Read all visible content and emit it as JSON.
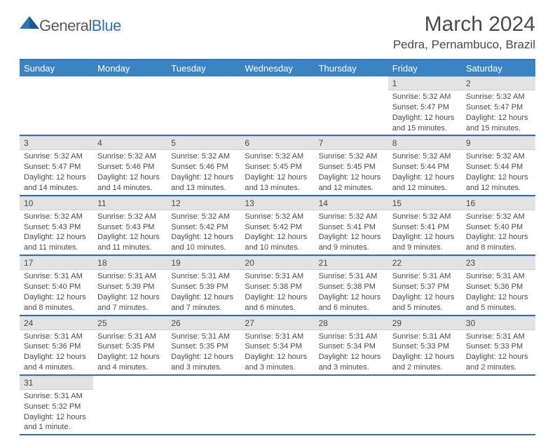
{
  "logo": {
    "part1": "General",
    "part2": "Blue"
  },
  "title": "March 2024",
  "location": "Pedra, Pernambuco, Brazil",
  "colors": {
    "header_bg": "#3a84c4",
    "accent": "#2d72b5",
    "daynum_bg": "#e3e3e3",
    "text": "#4a4a4a"
  },
  "weekdays": [
    "Sunday",
    "Monday",
    "Tuesday",
    "Wednesday",
    "Thursday",
    "Friday",
    "Saturday"
  ],
  "weeks": [
    [
      null,
      null,
      null,
      null,
      null,
      {
        "n": "1",
        "sr": "Sunrise: 5:32 AM",
        "ss": "Sunset: 5:47 PM",
        "dl1": "Daylight: 12 hours",
        "dl2": "and 15 minutes."
      },
      {
        "n": "2",
        "sr": "Sunrise: 5:32 AM",
        "ss": "Sunset: 5:47 PM",
        "dl1": "Daylight: 12 hours",
        "dl2": "and 15 minutes."
      }
    ],
    [
      {
        "n": "3",
        "sr": "Sunrise: 5:32 AM",
        "ss": "Sunset: 5:47 PM",
        "dl1": "Daylight: 12 hours",
        "dl2": "and 14 minutes."
      },
      {
        "n": "4",
        "sr": "Sunrise: 5:32 AM",
        "ss": "Sunset: 5:46 PM",
        "dl1": "Daylight: 12 hours",
        "dl2": "and 14 minutes."
      },
      {
        "n": "5",
        "sr": "Sunrise: 5:32 AM",
        "ss": "Sunset: 5:46 PM",
        "dl1": "Daylight: 12 hours",
        "dl2": "and 13 minutes."
      },
      {
        "n": "6",
        "sr": "Sunrise: 5:32 AM",
        "ss": "Sunset: 5:45 PM",
        "dl1": "Daylight: 12 hours",
        "dl2": "and 13 minutes."
      },
      {
        "n": "7",
        "sr": "Sunrise: 5:32 AM",
        "ss": "Sunset: 5:45 PM",
        "dl1": "Daylight: 12 hours",
        "dl2": "and 12 minutes."
      },
      {
        "n": "8",
        "sr": "Sunrise: 5:32 AM",
        "ss": "Sunset: 5:44 PM",
        "dl1": "Daylight: 12 hours",
        "dl2": "and 12 minutes."
      },
      {
        "n": "9",
        "sr": "Sunrise: 5:32 AM",
        "ss": "Sunset: 5:44 PM",
        "dl1": "Daylight: 12 hours",
        "dl2": "and 12 minutes."
      }
    ],
    [
      {
        "n": "10",
        "sr": "Sunrise: 5:32 AM",
        "ss": "Sunset: 5:43 PM",
        "dl1": "Daylight: 12 hours",
        "dl2": "and 11 minutes."
      },
      {
        "n": "11",
        "sr": "Sunrise: 5:32 AM",
        "ss": "Sunset: 5:43 PM",
        "dl1": "Daylight: 12 hours",
        "dl2": "and 11 minutes."
      },
      {
        "n": "12",
        "sr": "Sunrise: 5:32 AM",
        "ss": "Sunset: 5:42 PM",
        "dl1": "Daylight: 12 hours",
        "dl2": "and 10 minutes."
      },
      {
        "n": "13",
        "sr": "Sunrise: 5:32 AM",
        "ss": "Sunset: 5:42 PM",
        "dl1": "Daylight: 12 hours",
        "dl2": "and 10 minutes."
      },
      {
        "n": "14",
        "sr": "Sunrise: 5:32 AM",
        "ss": "Sunset: 5:41 PM",
        "dl1": "Daylight: 12 hours",
        "dl2": "and 9 minutes."
      },
      {
        "n": "15",
        "sr": "Sunrise: 5:32 AM",
        "ss": "Sunset: 5:41 PM",
        "dl1": "Daylight: 12 hours",
        "dl2": "and 9 minutes."
      },
      {
        "n": "16",
        "sr": "Sunrise: 5:32 AM",
        "ss": "Sunset: 5:40 PM",
        "dl1": "Daylight: 12 hours",
        "dl2": "and 8 minutes."
      }
    ],
    [
      {
        "n": "17",
        "sr": "Sunrise: 5:31 AM",
        "ss": "Sunset: 5:40 PM",
        "dl1": "Daylight: 12 hours",
        "dl2": "and 8 minutes."
      },
      {
        "n": "18",
        "sr": "Sunrise: 5:31 AM",
        "ss": "Sunset: 5:39 PM",
        "dl1": "Daylight: 12 hours",
        "dl2": "and 7 minutes."
      },
      {
        "n": "19",
        "sr": "Sunrise: 5:31 AM",
        "ss": "Sunset: 5:39 PM",
        "dl1": "Daylight: 12 hours",
        "dl2": "and 7 minutes."
      },
      {
        "n": "20",
        "sr": "Sunrise: 5:31 AM",
        "ss": "Sunset: 5:38 PM",
        "dl1": "Daylight: 12 hours",
        "dl2": "and 6 minutes."
      },
      {
        "n": "21",
        "sr": "Sunrise: 5:31 AM",
        "ss": "Sunset: 5:38 PM",
        "dl1": "Daylight: 12 hours",
        "dl2": "and 6 minutes."
      },
      {
        "n": "22",
        "sr": "Sunrise: 5:31 AM",
        "ss": "Sunset: 5:37 PM",
        "dl1": "Daylight: 12 hours",
        "dl2": "and 5 minutes."
      },
      {
        "n": "23",
        "sr": "Sunrise: 5:31 AM",
        "ss": "Sunset: 5:36 PM",
        "dl1": "Daylight: 12 hours",
        "dl2": "and 5 minutes."
      }
    ],
    [
      {
        "n": "24",
        "sr": "Sunrise: 5:31 AM",
        "ss": "Sunset: 5:36 PM",
        "dl1": "Daylight: 12 hours",
        "dl2": "and 4 minutes."
      },
      {
        "n": "25",
        "sr": "Sunrise: 5:31 AM",
        "ss": "Sunset: 5:35 PM",
        "dl1": "Daylight: 12 hours",
        "dl2": "and 4 minutes."
      },
      {
        "n": "26",
        "sr": "Sunrise: 5:31 AM",
        "ss": "Sunset: 5:35 PM",
        "dl1": "Daylight: 12 hours",
        "dl2": "and 3 minutes."
      },
      {
        "n": "27",
        "sr": "Sunrise: 5:31 AM",
        "ss": "Sunset: 5:34 PM",
        "dl1": "Daylight: 12 hours",
        "dl2": "and 3 minutes."
      },
      {
        "n": "28",
        "sr": "Sunrise: 5:31 AM",
        "ss": "Sunset: 5:34 PM",
        "dl1": "Daylight: 12 hours",
        "dl2": "and 3 minutes."
      },
      {
        "n": "29",
        "sr": "Sunrise: 5:31 AM",
        "ss": "Sunset: 5:33 PM",
        "dl1": "Daylight: 12 hours",
        "dl2": "and 2 minutes."
      },
      {
        "n": "30",
        "sr": "Sunrise: 5:31 AM",
        "ss": "Sunset: 5:33 PM",
        "dl1": "Daylight: 12 hours",
        "dl2": "and 2 minutes."
      }
    ],
    [
      {
        "n": "31",
        "sr": "Sunrise: 5:31 AM",
        "ss": "Sunset: 5:32 PM",
        "dl1": "Daylight: 12 hours",
        "dl2": "and 1 minute."
      },
      null,
      null,
      null,
      null,
      null,
      null
    ]
  ]
}
